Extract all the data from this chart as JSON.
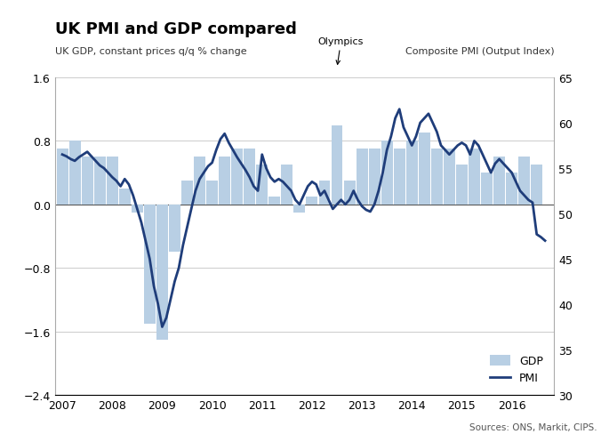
{
  "title": "UK PMI and GDP compared",
  "left_ylabel": "UK GDP, constant prices q/q % change",
  "right_ylabel": "Composite PMI (Output Index)",
  "source": "Sources: ONS, Markit, CIPS.",
  "olympics_label": "Olympics",
  "ylim_left": [
    -2.4,
    1.6
  ],
  "ylim_right": [
    30,
    65
  ],
  "yticks_left": [
    -2.4,
    -1.6,
    -0.8,
    0.0,
    0.8,
    1.6
  ],
  "yticks_right": [
    30,
    35,
    40,
    45,
    50,
    55,
    60,
    65
  ],
  "gdp_bar_color": "#b8cfe4",
  "pmi_line_color": "#1f3d7a",
  "gdp_values": [
    0.7,
    0.8,
    0.6,
    0.6,
    0.6,
    0.2,
    -0.1,
    -1.5,
    -1.7,
    -0.6,
    0.3,
    0.6,
    0.3,
    0.6,
    0.7,
    0.7,
    0.5,
    0.1,
    0.5,
    -0.1,
    0.1,
    0.3,
    1.0,
    0.3,
    0.7,
    0.7,
    0.8,
    0.7,
    0.8,
    0.9,
    0.7,
    0.7,
    0.5,
    0.7,
    0.4,
    0.6,
    0.4,
    0.6,
    0.5
  ],
  "gdp_x_positions": [
    2007.0,
    2007.25,
    2007.5,
    2007.75,
    2008.0,
    2008.25,
    2008.5,
    2008.75,
    2009.0,
    2009.25,
    2009.5,
    2009.75,
    2010.0,
    2010.25,
    2010.5,
    2010.75,
    2011.0,
    2011.25,
    2011.5,
    2011.75,
    2012.0,
    2012.25,
    2012.5,
    2012.75,
    2013.0,
    2013.25,
    2013.5,
    2013.75,
    2014.0,
    2014.25,
    2014.5,
    2014.75,
    2015.0,
    2015.25,
    2015.5,
    2015.75,
    2016.0,
    2016.25,
    2016.5
  ],
  "pmi_x": [
    2007.0,
    2007.083,
    2007.167,
    2007.25,
    2007.333,
    2007.417,
    2007.5,
    2007.583,
    2007.667,
    2007.75,
    2007.833,
    2007.917,
    2008.0,
    2008.083,
    2008.167,
    2008.25,
    2008.333,
    2008.417,
    2008.5,
    2008.583,
    2008.667,
    2008.75,
    2008.833,
    2008.917,
    2009.0,
    2009.083,
    2009.167,
    2009.25,
    2009.333,
    2009.417,
    2009.5,
    2009.583,
    2009.667,
    2009.75,
    2009.833,
    2009.917,
    2010.0,
    2010.083,
    2010.167,
    2010.25,
    2010.333,
    2010.417,
    2010.5,
    2010.583,
    2010.667,
    2010.75,
    2010.833,
    2010.917,
    2011.0,
    2011.083,
    2011.167,
    2011.25,
    2011.333,
    2011.417,
    2011.5,
    2011.583,
    2011.667,
    2011.75,
    2011.833,
    2011.917,
    2012.0,
    2012.083,
    2012.167,
    2012.25,
    2012.333,
    2012.417,
    2012.5,
    2012.583,
    2012.667,
    2012.75,
    2012.833,
    2012.917,
    2013.0,
    2013.083,
    2013.167,
    2013.25,
    2013.333,
    2013.417,
    2013.5,
    2013.583,
    2013.667,
    2013.75,
    2013.833,
    2013.917,
    2014.0,
    2014.083,
    2014.167,
    2014.25,
    2014.333,
    2014.417,
    2014.5,
    2014.583,
    2014.667,
    2014.75,
    2014.833,
    2014.917,
    2015.0,
    2015.083,
    2015.167,
    2015.25,
    2015.333,
    2015.417,
    2015.5,
    2015.583,
    2015.667,
    2015.75,
    2015.833,
    2015.917,
    2016.0,
    2016.083,
    2016.167,
    2016.25,
    2016.333,
    2016.417,
    2016.5,
    2016.583,
    2016.667
  ],
  "pmi_values": [
    56.5,
    56.3,
    56.0,
    55.8,
    56.2,
    56.5,
    56.8,
    56.3,
    55.8,
    55.3,
    55.0,
    54.5,
    54.0,
    53.6,
    53.0,
    53.8,
    53.2,
    52.0,
    50.5,
    49.0,
    47.0,
    45.0,
    42.0,
    40.0,
    37.5,
    38.5,
    40.5,
    42.5,
    44.0,
    46.5,
    48.5,
    50.5,
    52.5,
    53.8,
    54.5,
    55.2,
    55.6,
    57.0,
    58.2,
    58.8,
    57.8,
    57.0,
    56.2,
    55.5,
    54.8,
    54.0,
    53.0,
    52.5,
    56.5,
    55.0,
    54.0,
    53.5,
    53.8,
    53.5,
    53.0,
    52.5,
    51.5,
    51.0,
    52.0,
    53.0,
    53.5,
    53.2,
    52.0,
    52.5,
    51.5,
    50.5,
    51.0,
    51.5,
    51.0,
    51.5,
    52.5,
    51.5,
    50.8,
    50.4,
    50.2,
    51.0,
    52.5,
    54.5,
    57.0,
    58.5,
    60.5,
    61.5,
    59.5,
    58.5,
    57.5,
    58.5,
    60.0,
    60.5,
    61.0,
    60.0,
    59.0,
    57.5,
    57.0,
    56.5,
    57.0,
    57.5,
    57.8,
    57.5,
    56.5,
    58.0,
    57.5,
    56.5,
    55.5,
    54.5,
    55.5,
    56.0,
    55.5,
    55.0,
    54.5,
    53.5,
    52.5,
    52.0,
    51.5,
    51.2,
    47.7,
    47.4,
    47.0
  ],
  "olympics_x": 2012.5,
  "xticks": [
    2007,
    2008,
    2009,
    2010,
    2011,
    2012,
    2013,
    2014,
    2015,
    2016
  ],
  "xlim": [
    2006.85,
    2016.85
  ]
}
